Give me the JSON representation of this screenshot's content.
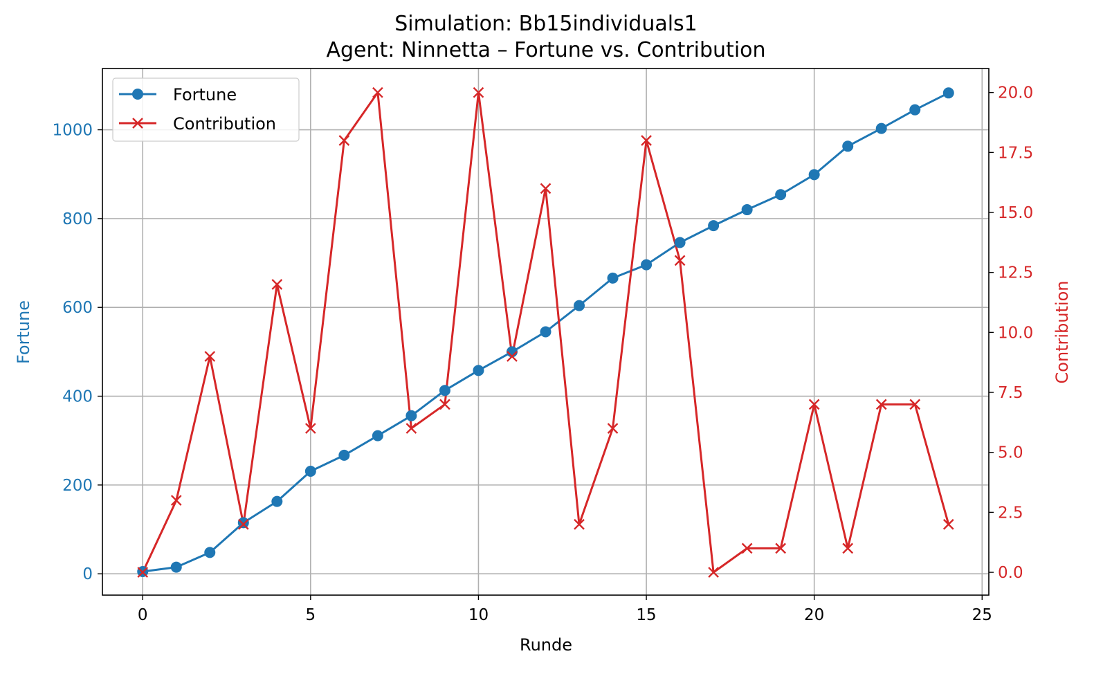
{
  "chart_data": {
    "type": "line",
    "title": "Simulation: Bb15individuals1",
    "subtitle": "Agent: Ninnetta – Fortune vs. Contribution",
    "xlabel": "Runde",
    "ylabel_left": "Fortune",
    "ylabel_right": "Contribution",
    "x": [
      0,
      1,
      2,
      3,
      4,
      5,
      6,
      7,
      8,
      9,
      10,
      11,
      12,
      13,
      14,
      15,
      16,
      17,
      18,
      19,
      20,
      21,
      22,
      23,
      24
    ],
    "xlim": [
      -1.2,
      25.2
    ],
    "xticks": [
      0,
      5,
      10,
      15,
      20,
      25
    ],
    "ylim_left": [
      -48,
      1138
    ],
    "yticks_left": [
      0,
      200,
      400,
      600,
      800,
      1000
    ],
    "ylim_right": [
      -0.95,
      21.0
    ],
    "yticks_right": [
      "0.0",
      "2.5",
      "5.0",
      "7.5",
      "10.0",
      "12.5",
      "15.0",
      "17.5",
      "20.0"
    ],
    "grid": true,
    "legend_position": "top-left",
    "series": [
      {
        "name": "Fortune",
        "axis": "left",
        "color": "#1f77b4",
        "marker": "circle",
        "values": [
          5,
          15,
          48,
          115,
          163,
          231,
          267,
          311,
          356,
          413,
          458,
          500,
          545,
          604,
          666,
          696,
          746,
          784,
          820,
          854,
          899,
          963,
          1003,
          1045,
          1083
        ]
      },
      {
        "name": "Contribution",
        "axis": "right",
        "color": "#d62728",
        "marker": "x",
        "values": [
          0,
          3,
          9,
          2,
          12,
          6,
          18,
          20,
          6,
          7,
          20,
          9,
          16,
          2,
          6,
          18,
          13,
          0,
          1,
          1,
          7,
          1,
          7,
          7,
          2
        ]
      }
    ]
  }
}
